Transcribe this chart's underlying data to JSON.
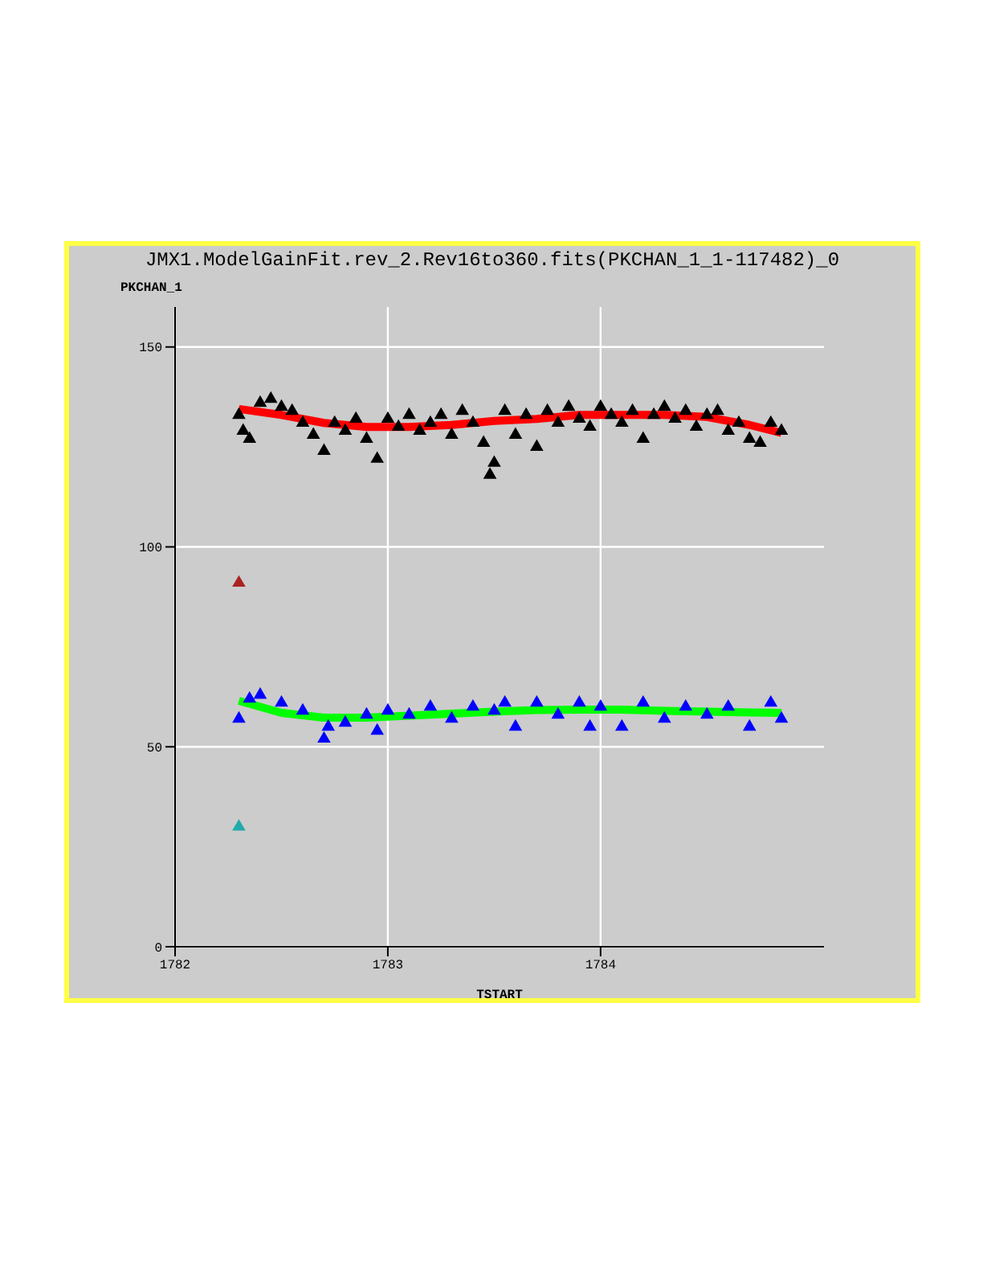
{
  "chart_data": {
    "type": "scatter",
    "title": "JMX1.ModelGainFit.rev_2.Rev16to360.fits(PKCHAN_1_1-117482)_0",
    "xlabel": "TSTART",
    "ylabel": "PKCHAN_1",
    "xlim": [
      1782,
      1785.05
    ],
    "xticks": [
      1782,
      1783,
      1784
    ],
    "ylim": [
      0,
      160
    ],
    "yticks": [
      0,
      50,
      100,
      150
    ],
    "grid": true,
    "legend": false,
    "series": [
      {
        "type": "scatter",
        "marker": "triangle",
        "color": "#000000",
        "x": [
          1782.3,
          1782.32,
          1782.35,
          1782.4,
          1782.45,
          1782.5,
          1782.55,
          1782.6,
          1782.65,
          1782.7,
          1782.75,
          1782.8,
          1782.85,
          1782.9,
          1782.95,
          1783.0,
          1783.05,
          1783.1,
          1783.15,
          1783.2,
          1783.25,
          1783.3,
          1783.35,
          1783.4,
          1783.45,
          1783.48,
          1783.5,
          1783.55,
          1783.6,
          1783.65,
          1783.7,
          1783.75,
          1783.8,
          1783.85,
          1783.9,
          1783.95,
          1784.0,
          1784.05,
          1784.1,
          1784.15,
          1784.2,
          1784.25,
          1784.3,
          1784.35,
          1784.4,
          1784.45,
          1784.5,
          1784.55,
          1784.6,
          1784.65,
          1784.7,
          1784.75,
          1784.8,
          1784.85
        ],
        "values": [
          133,
          129,
          127,
          136,
          137,
          135,
          134,
          131,
          128,
          124,
          131,
          129,
          132,
          127,
          122,
          132,
          130,
          133,
          129,
          131,
          133,
          128,
          134,
          131,
          126,
          118,
          121,
          134,
          128,
          133,
          125,
          134,
          131,
          135,
          132,
          130,
          135,
          133,
          131,
          134,
          127,
          133,
          135,
          132,
          134,
          130,
          133,
          134,
          129,
          131,
          127,
          126,
          131,
          129
        ]
      },
      {
        "type": "line",
        "marker": "none",
        "color": "#ff0000",
        "x": [
          1782.3,
          1782.5,
          1782.7,
          1782.9,
          1783.1,
          1783.3,
          1783.5,
          1783.7,
          1783.9,
          1784.1,
          1784.3,
          1784.5,
          1784.7,
          1784.85
        ],
        "values": [
          134.5,
          133,
          131,
          130,
          130,
          130.5,
          131.5,
          132,
          133,
          133,
          133,
          132.5,
          130.5,
          128.5
        ]
      },
      {
        "type": "scatter",
        "marker": "triangle",
        "color": "#0000ff",
        "x": [
          1782.3,
          1782.35,
          1782.4,
          1782.5,
          1782.6,
          1782.7,
          1782.72,
          1782.8,
          1782.9,
          1782.95,
          1783.0,
          1783.1,
          1783.2,
          1783.3,
          1783.4,
          1783.5,
          1783.55,
          1783.6,
          1783.7,
          1783.8,
          1783.9,
          1783.95,
          1784.0,
          1784.1,
          1784.2,
          1784.3,
          1784.4,
          1784.5,
          1784.6,
          1784.7,
          1784.8,
          1784.85
        ],
        "values": [
          57,
          62,
          63,
          61,
          59,
          52,
          55,
          56,
          58,
          54,
          59,
          58,
          60,
          57,
          60,
          59,
          61,
          55,
          61,
          58,
          61,
          55,
          60,
          55,
          61,
          57,
          60,
          58,
          60,
          55,
          61,
          57
        ]
      },
      {
        "type": "line",
        "marker": "none",
        "color": "#00ff00",
        "x": [
          1782.3,
          1782.4,
          1782.5,
          1782.7,
          1782.9,
          1783.1,
          1783.3,
          1783.5,
          1783.7,
          1783.9,
          1784.1,
          1784.3,
          1784.5,
          1784.7,
          1784.85
        ],
        "values": [
          61.5,
          60,
          58.5,
          57.3,
          57.3,
          57.8,
          58.3,
          58.8,
          59.2,
          59.3,
          59.3,
          59,
          58.8,
          58.6,
          58.5
        ]
      },
      {
        "type": "scatter",
        "marker": "triangle",
        "color": "#aa2222",
        "x": [
          1782.3
        ],
        "values": [
          91
        ]
      },
      {
        "type": "scatter",
        "marker": "triangle",
        "color": "#22aaaa",
        "x": [
          1782.3
        ],
        "values": [
          30
        ]
      }
    ]
  }
}
